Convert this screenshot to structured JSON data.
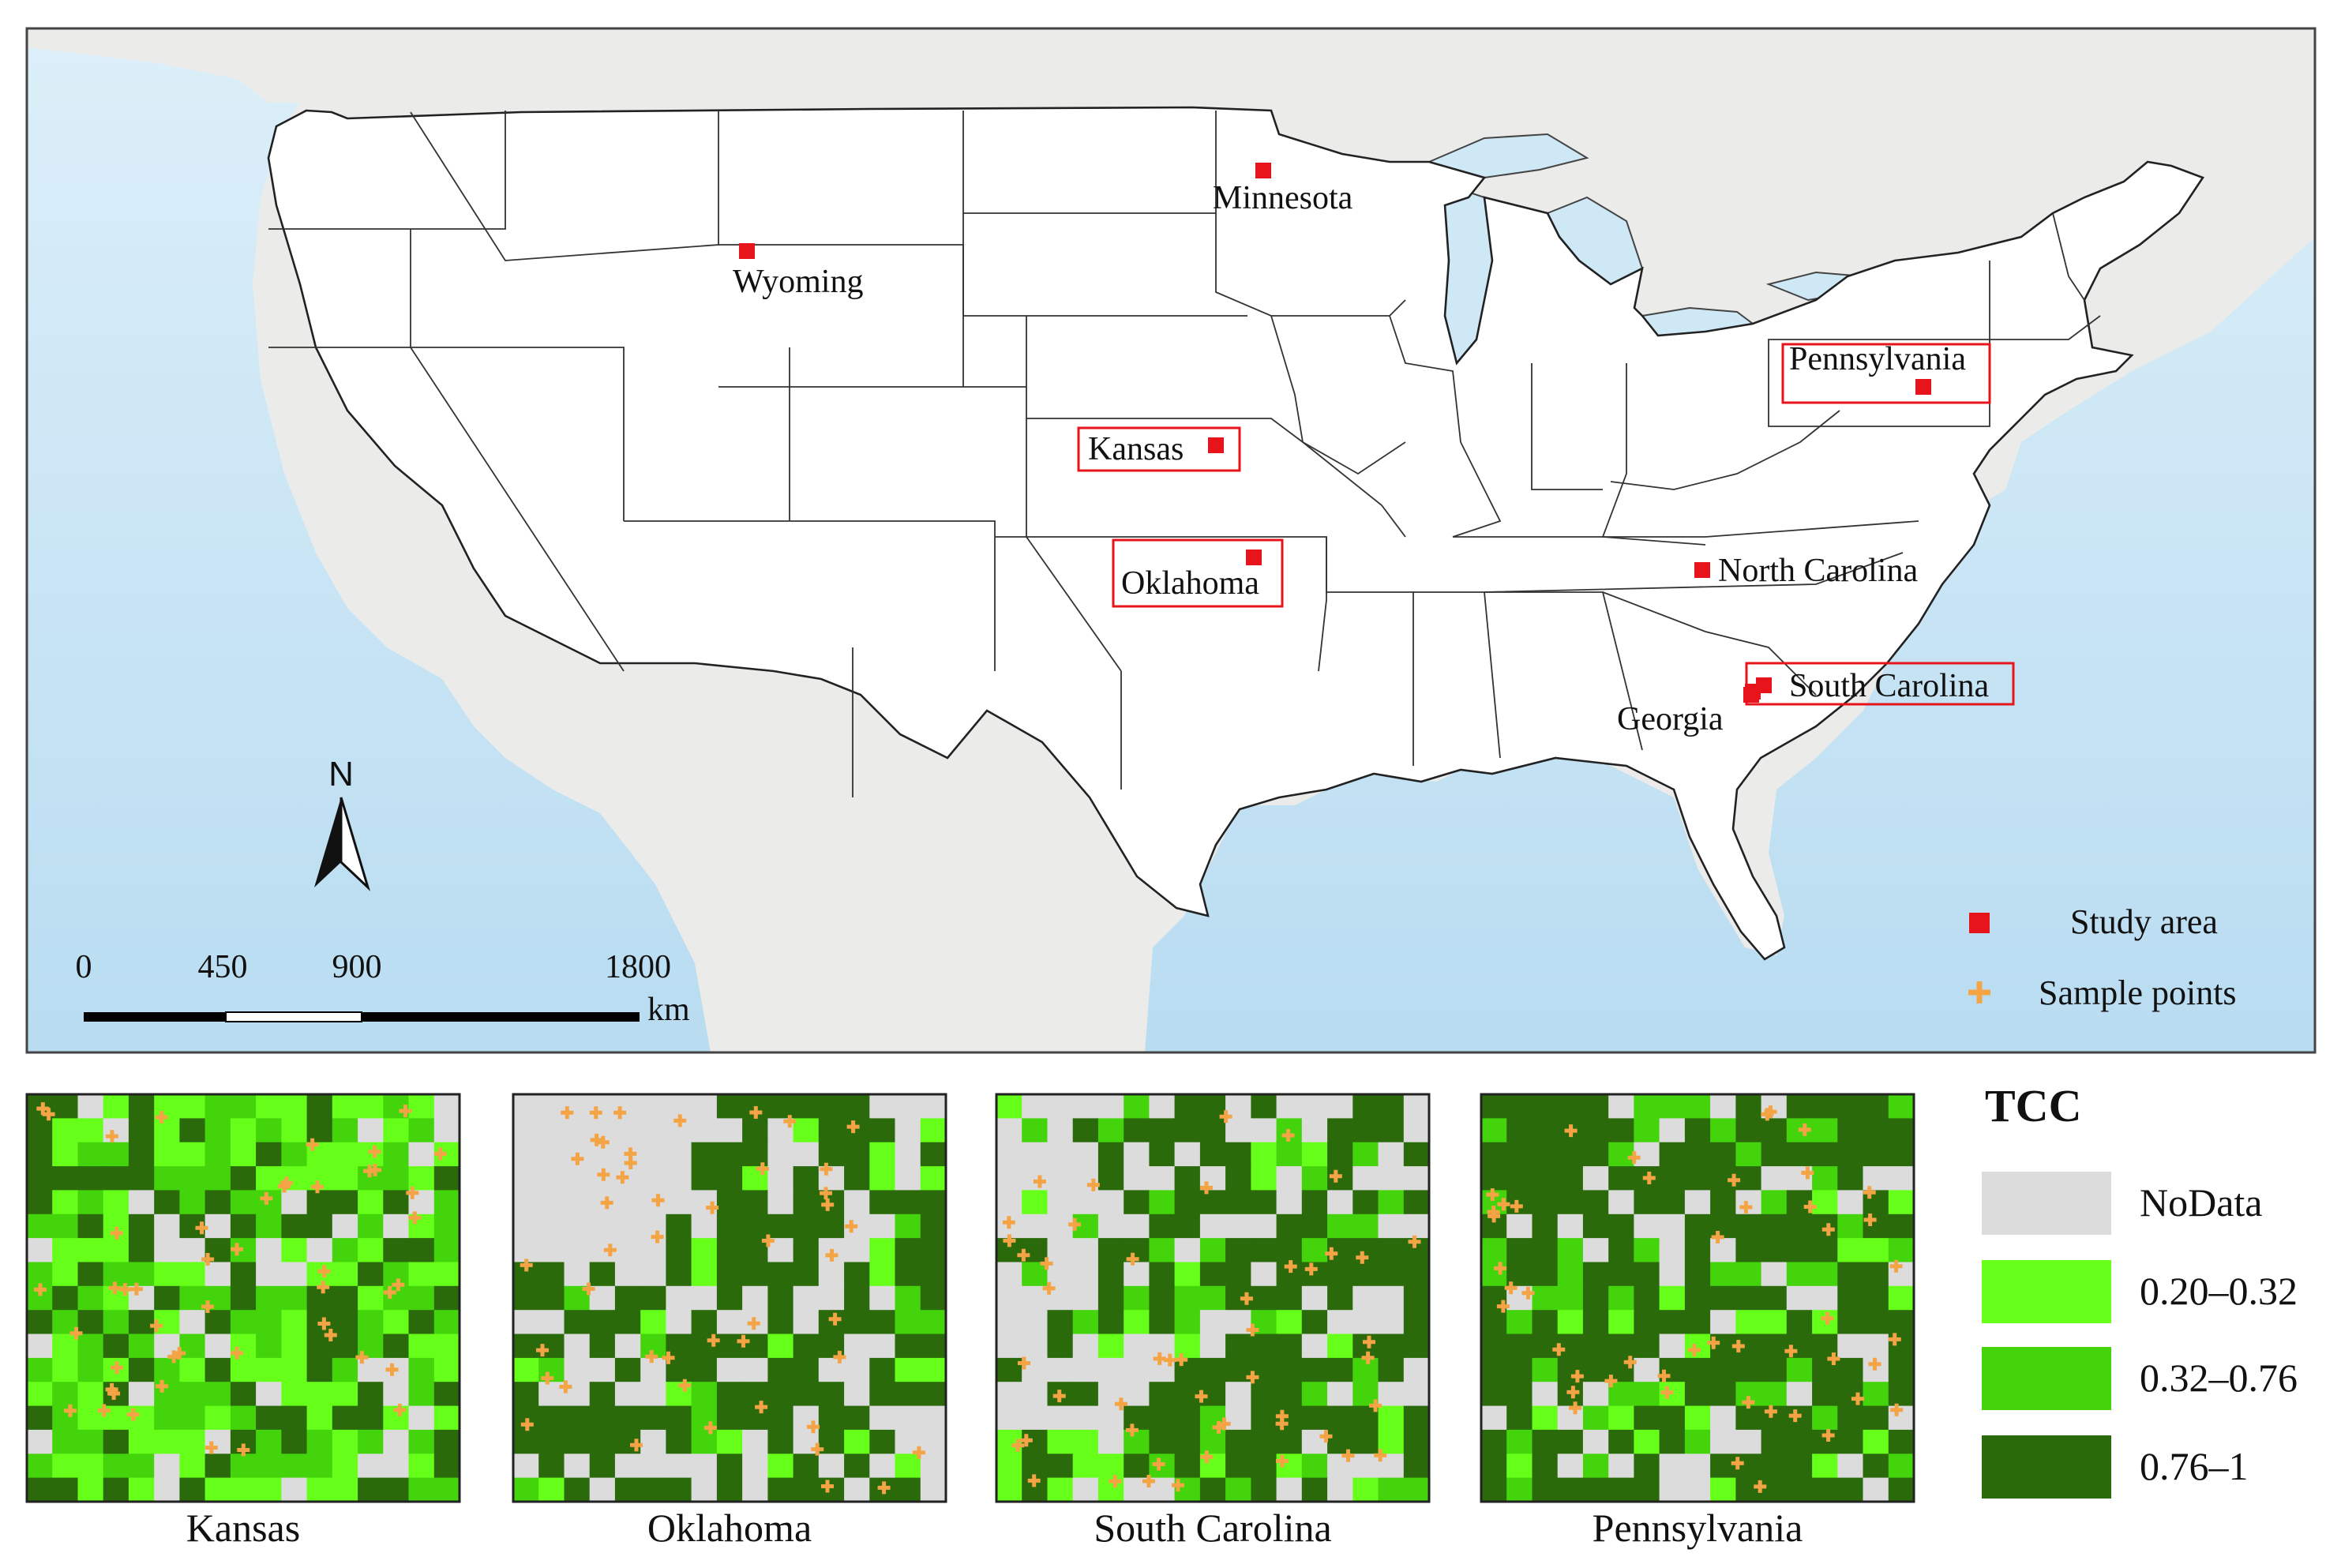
{
  "map": {
    "north_label": "N",
    "scale": {
      "ticks": [
        "0",
        "450",
        "900",
        "1800"
      ],
      "unit": "km"
    },
    "states": [
      {
        "key": "wyoming",
        "label": "Wyoming",
        "boxed": false
      },
      {
        "key": "minnesota",
        "label": "Minnesota",
        "boxed": false
      },
      {
        "key": "pennsylvania",
        "label": "Pennsylvania",
        "boxed": true
      },
      {
        "key": "kansas",
        "label": "Kansas",
        "boxed": true
      },
      {
        "key": "oklahoma",
        "label": "Oklahoma",
        "boxed": true
      },
      {
        "key": "north_carolina",
        "label": "North Carolina",
        "boxed": false
      },
      {
        "key": "south_carolina",
        "label": "South Carolina",
        "boxed": true
      },
      {
        "key": "georgia",
        "label": "Georgia",
        "boxed": false
      }
    ],
    "legend": {
      "study_area": "Study area",
      "sample_points": "Sample points"
    }
  },
  "insets": [
    {
      "key": "kansas",
      "label": "Kansas"
    },
    {
      "key": "oklahoma",
      "label": "Oklahoma"
    },
    {
      "key": "south_carolina",
      "label": "South Carolina"
    },
    {
      "key": "pennsylvania",
      "label": "Pennsylvania"
    }
  ],
  "tcc_legend": {
    "title": "TCC",
    "classes": [
      {
        "label": "NoData",
        "color": "#dcdcdc"
      },
      {
        "label": "0.20–0.32",
        "color": "#66ff1a"
      },
      {
        "label": "0.32–0.76",
        "color": "#44d40c"
      },
      {
        "label": "0.76–1",
        "color": "#2b6a0b"
      }
    ]
  },
  "colors": {
    "study_marker": "#e8141c",
    "sample_marker": "#f5a445",
    "ocean": "#cfe8f6",
    "land_outside": "#e9ebe7"
  }
}
